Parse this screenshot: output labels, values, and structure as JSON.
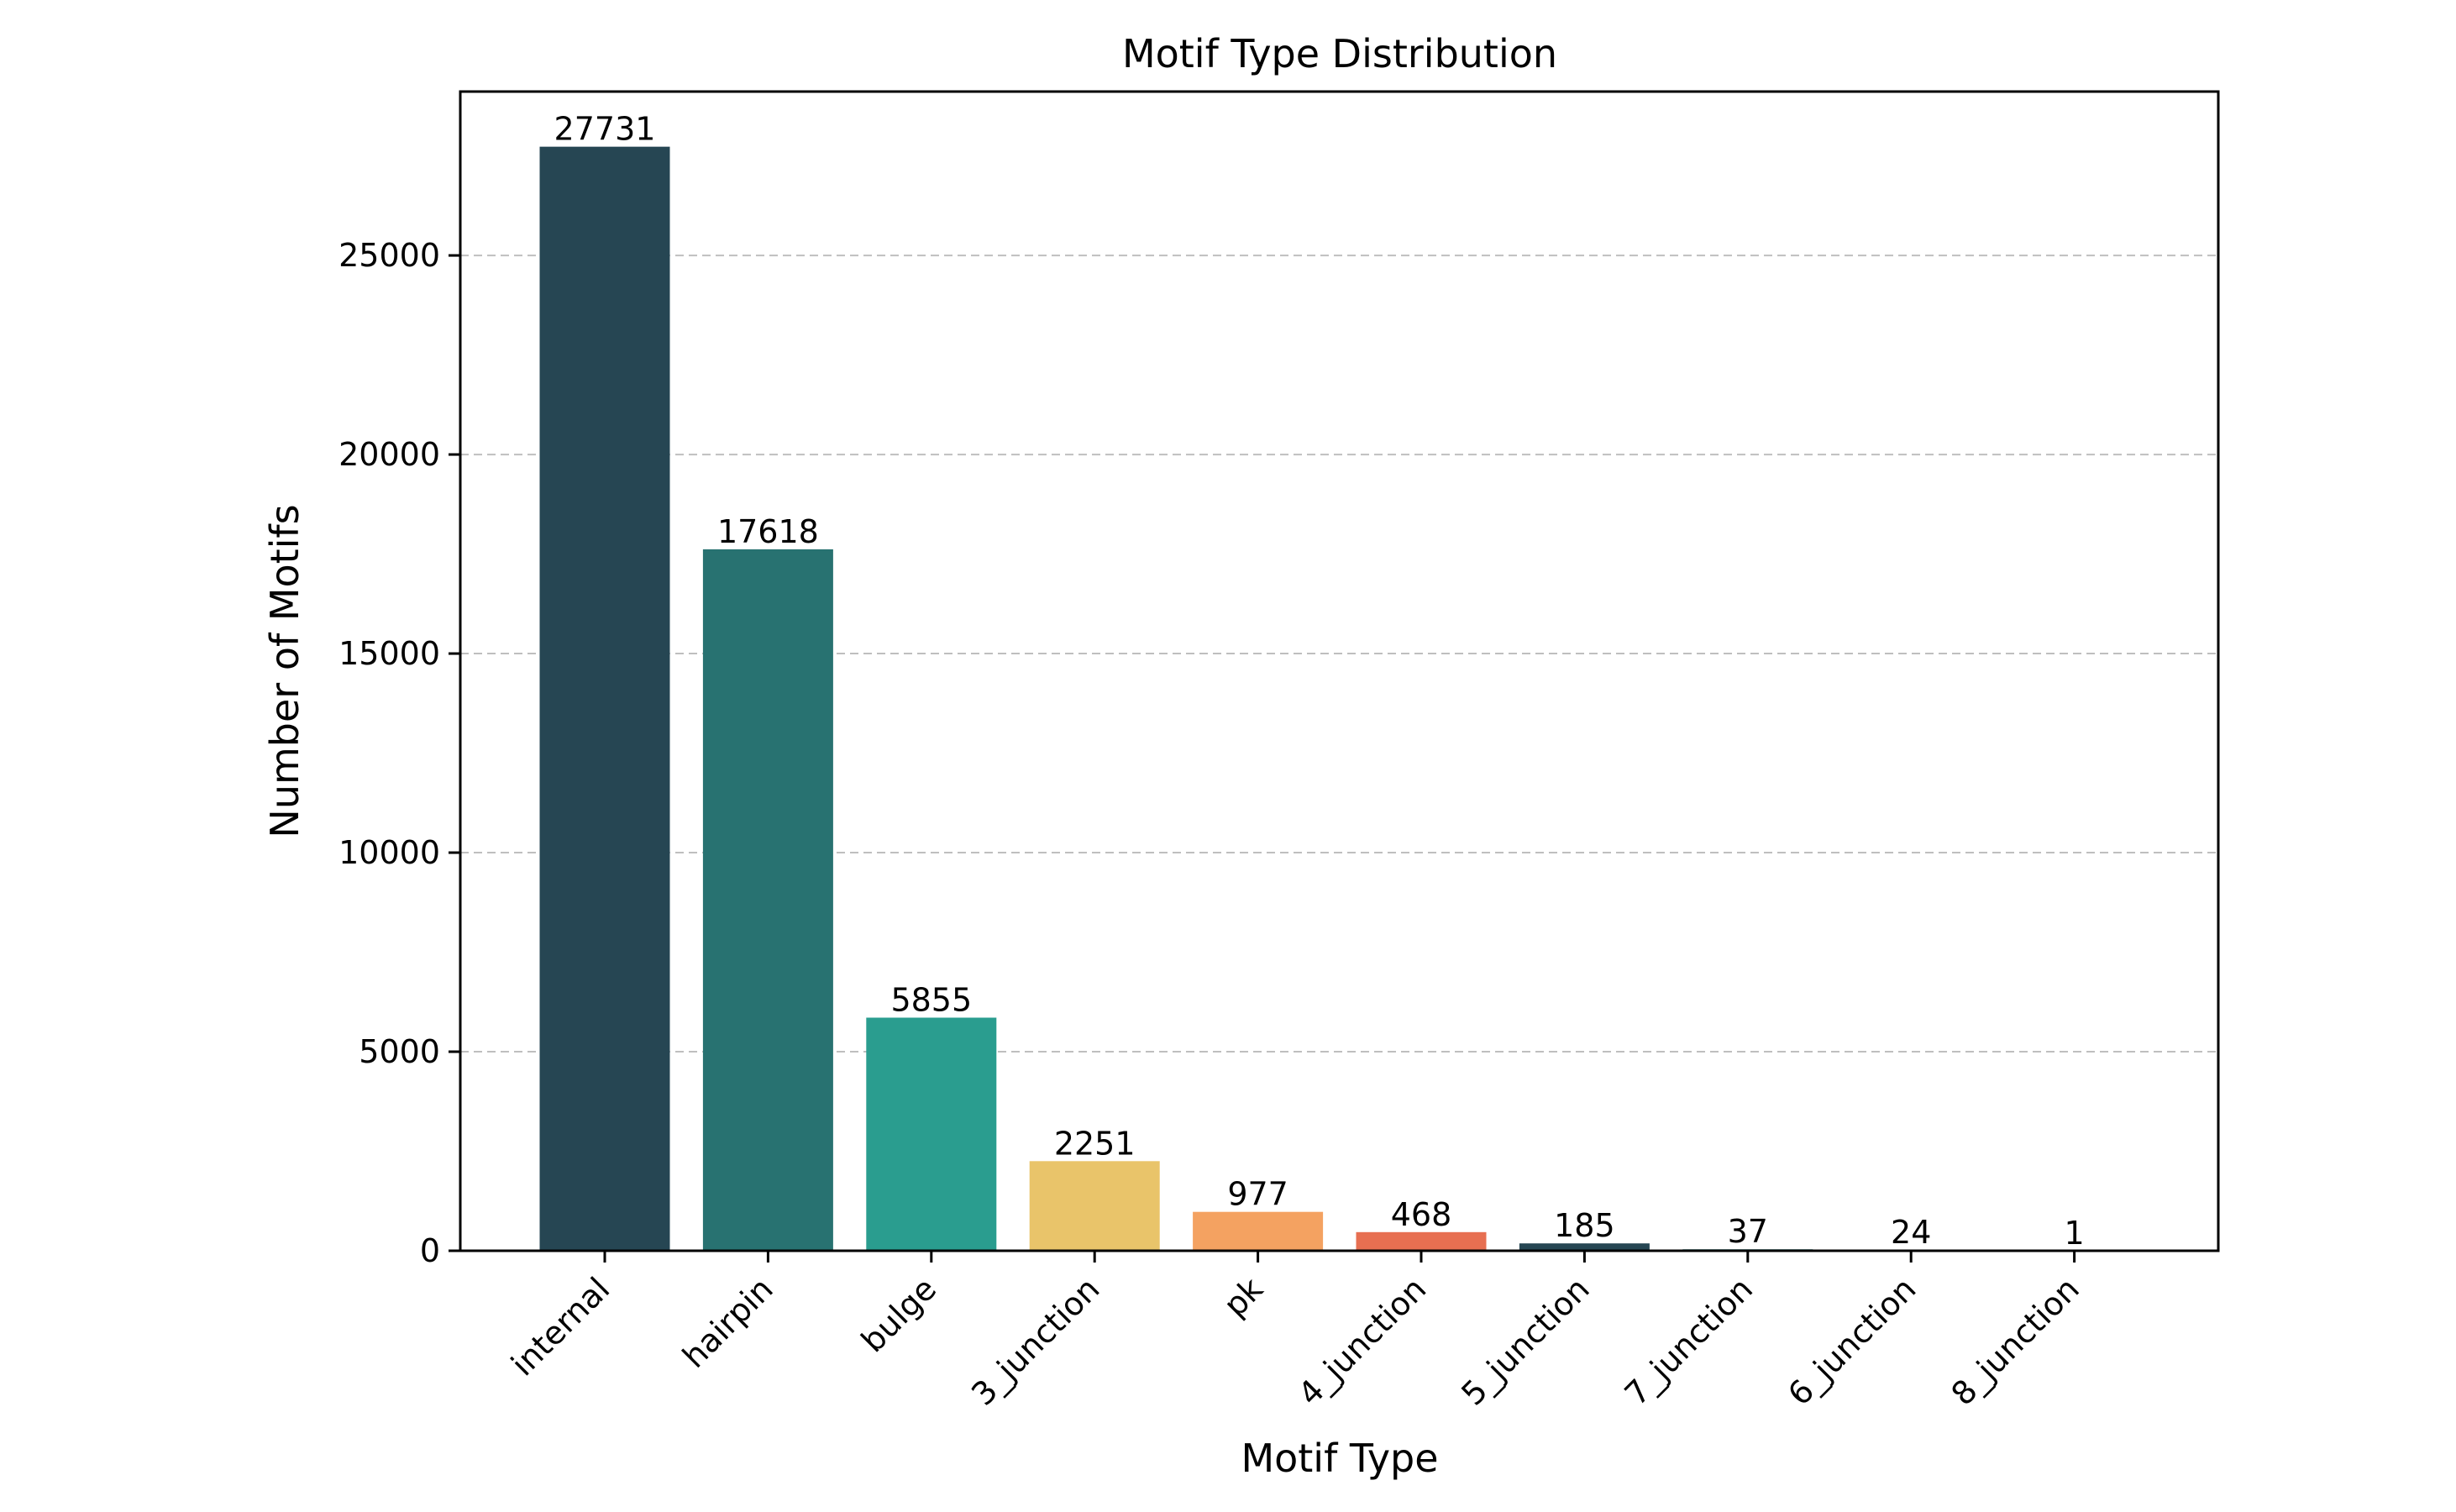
{
  "chart_data": {
    "type": "bar",
    "title": "Motif Type Distribution",
    "xlabel": "Motif Type",
    "ylabel": "Number of Motifs",
    "categories": [
      "internal",
      "hairpin",
      "bulge",
      "3_junction",
      "pk",
      "4_junction",
      "5_junction",
      "7_junction",
      "6_junction",
      "8_junction"
    ],
    "values": [
      27731,
      17618,
      5855,
      2251,
      977,
      468,
      185,
      37,
      24,
      1
    ],
    "colors": [
      "#264653",
      "#287271",
      "#2a9d8f",
      "#e9c46a",
      "#f4a261",
      "#e76f51",
      "#264653",
      "#287271",
      "#2a9d8f",
      "#e9c46a"
    ],
    "ylim": [
      0,
      29116
    ],
    "yticks": [
      0,
      5000,
      10000,
      15000,
      20000,
      25000
    ],
    "grid": "y-dashed",
    "legend": "none"
  }
}
